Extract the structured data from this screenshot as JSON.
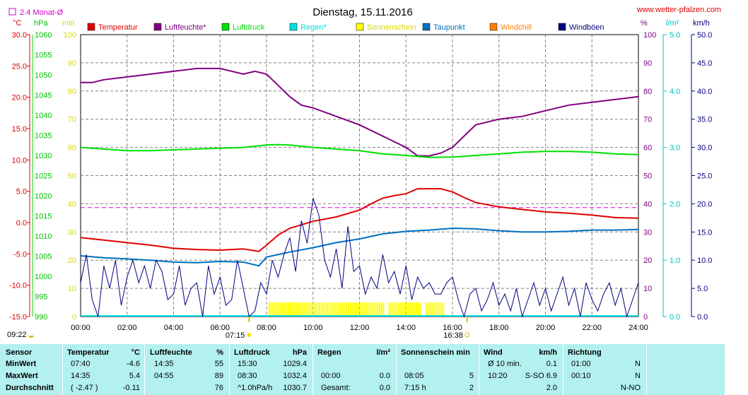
{
  "header": {
    "title": "Dienstag, 15.11.2016",
    "website": "www.wetter-pfalzen.com",
    "monthly_avg_label": "2.4 Monat-Ø"
  },
  "legend": [
    {
      "name": "Temperatur",
      "color": "#e00000"
    },
    {
      "name": "Luftfeuchte*",
      "color": "#800080"
    },
    {
      "name": "Luftdruck",
      "color": "#00e000"
    },
    {
      "name": "Regen*",
      "color": "#00e0e0"
    },
    {
      "name": "Sonnenschein",
      "color": "#ffff00"
    },
    {
      "name": "Taupunkt",
      "color": "#0070c0"
    },
    {
      "name": "Windchill",
      "color": "#ff8000"
    },
    {
      "name": "Windböen",
      "color": "#000080"
    }
  ],
  "chart_data": {
    "type": "line",
    "title": "Dienstag, 15.11.2016",
    "x_ticks": [
      "00:00",
      "02:00",
      "04:00",
      "06:00",
      "08:00",
      "10:00",
      "12:00",
      "14:00",
      "16:00",
      "18:00",
      "20:00",
      "22:00",
      "24:00"
    ],
    "xlim_hours": [
      0,
      24
    ],
    "grid": true,
    "axes": {
      "temperature": {
        "unit": "°C",
        "range": [
          -15,
          30
        ],
        "ticks": [
          "30.0",
          "25.0",
          "20.0",
          "15.0",
          "10.0",
          "5.0",
          "0.0",
          "-5.0",
          "-10.0",
          "-15.0"
        ]
      },
      "pressure": {
        "unit": "hPa",
        "range": [
          990,
          1060
        ],
        "ticks": [
          "1060",
          "1055",
          "1050",
          "1045",
          "1040",
          "1035",
          "1030",
          "1025",
          "1020",
          "1015",
          "1010",
          "1005",
          "1000",
          "995",
          "990"
        ]
      },
      "sunshine": {
        "unit": "min",
        "range": [
          0,
          100
        ],
        "ticks": [
          "100",
          "90",
          "80",
          "70",
          "60",
          "50",
          "40",
          "30",
          "20",
          "10",
          "0"
        ]
      },
      "humidity": {
        "unit": "%",
        "range": [
          0,
          100
        ],
        "ticks": [
          "100",
          "90",
          "80",
          "70",
          "60",
          "50",
          "40",
          "30",
          "20",
          "10",
          "0"
        ]
      },
      "rain": {
        "unit": "l/m²",
        "range": [
          0,
          5
        ],
        "ticks": [
          "5.0",
          "4.0",
          "3.0",
          "2.0",
          "1.0",
          "0.0"
        ]
      },
      "wind": {
        "unit": "km/h",
        "range": [
          0,
          50
        ],
        "ticks": [
          "50.0",
          "45.0",
          "40.0",
          "35.0",
          "30.0",
          "25.0",
          "20.0",
          "15.0",
          "10.0",
          "5.0",
          "0.0"
        ]
      }
    },
    "monthly_avg_temperature": 2.4,
    "series": [
      {
        "name": "Temperatur",
        "axis": "temperature",
        "color": "#e00000",
        "x": [
          0,
          1,
          2,
          3,
          4,
          5,
          6,
          7,
          7.67,
          8,
          8.5,
          9,
          10,
          11,
          12,
          12.5,
          13,
          13.5,
          14,
          14.5,
          15,
          15.5,
          16,
          16.5,
          17,
          18,
          19,
          20,
          21,
          22,
          23,
          24
        ],
        "y": [
          -2.4,
          -2.8,
          -3.2,
          -3.6,
          -4.1,
          -4.3,
          -4.4,
          -4.2,
          -4.6,
          -3.6,
          -2.0,
          -0.9,
          0.2,
          0.9,
          2.0,
          3.0,
          3.9,
          4.3,
          4.6,
          5.4,
          5.4,
          5.4,
          4.9,
          4.0,
          3.2,
          2.5,
          2.1,
          1.7,
          1.5,
          1.2,
          0.8,
          0.7
        ]
      },
      {
        "name": "Luftfeuchte",
        "axis": "humidity",
        "color": "#800080",
        "x": [
          0,
          0.5,
          1,
          2,
          3,
          4,
          5,
          6,
          7,
          7.5,
          8,
          8.5,
          9,
          9.5,
          10,
          11,
          12,
          12.5,
          13,
          13.5,
          14,
          14.5,
          15,
          15.5,
          16,
          16.5,
          17,
          18,
          19,
          20,
          21,
          22,
          23,
          24
        ],
        "y": [
          83,
          83,
          84,
          85,
          86,
          87,
          88,
          88,
          86,
          87,
          86,
          82,
          78,
          75,
          74,
          71,
          68,
          66,
          64,
          62,
          60,
          57,
          57,
          58,
          60,
          64,
          68,
          70,
          71,
          73,
          75,
          76,
          77,
          78
        ]
      },
      {
        "name": "Luftdruck",
        "axis": "pressure",
        "color": "#00e000",
        "x": [
          0,
          1,
          2,
          3,
          4,
          5,
          6,
          7,
          8,
          8.5,
          9,
          10,
          11,
          12,
          13,
          14,
          15,
          16,
          17,
          18,
          19,
          20,
          21,
          22,
          23,
          24
        ],
        "y": [
          1032.0,
          1031.6,
          1031.2,
          1031.2,
          1031.4,
          1031.6,
          1031.8,
          1032.0,
          1032.6,
          1032.7,
          1032.6,
          1032.0,
          1031.6,
          1031.2,
          1030.4,
          1030.0,
          1029.5,
          1029.6,
          1030.0,
          1030.4,
          1030.8,
          1031.0,
          1031.0,
          1030.8,
          1030.4,
          1030.2
        ]
      },
      {
        "name": "Taupunkt",
        "axis": "temperature",
        "color": "#0070c0",
        "x": [
          0,
          1,
          2,
          3,
          4,
          5,
          6,
          7,
          7.67,
          8,
          9,
          10,
          11,
          12,
          13,
          14,
          15,
          16,
          17,
          18,
          19,
          20,
          21,
          22,
          23,
          24
        ],
        "y": [
          -5.3,
          -5.6,
          -5.8,
          -6.0,
          -6.3,
          -6.4,
          -6.2,
          -6.3,
          -6.9,
          -5.5,
          -4.7,
          -4.0,
          -3.2,
          -2.6,
          -1.8,
          -1.4,
          -1.2,
          -0.9,
          -1.0,
          -1.3,
          -1.5,
          -1.5,
          -1.4,
          -1.2,
          -1.2,
          -1.1
        ]
      },
      {
        "name": "Windböen",
        "axis": "wind",
        "color": "#000080",
        "x": [
          0,
          0.25,
          0.5,
          0.75,
          1,
          1.25,
          1.5,
          1.75,
          2,
          2.25,
          2.5,
          2.75,
          3,
          3.25,
          3.5,
          3.75,
          4,
          4.25,
          4.5,
          4.75,
          5,
          5.25,
          5.5,
          5.75,
          6,
          6.25,
          6.5,
          6.75,
          7,
          7.25,
          7.5,
          7.75,
          8,
          8.25,
          8.5,
          8.75,
          9,
          9.25,
          9.5,
          9.75,
          10,
          10.25,
          10.5,
          10.75,
          11,
          11.25,
          11.5,
          11.75,
          12,
          12.25,
          12.5,
          12.75,
          13,
          13.25,
          13.5,
          13.75,
          14,
          14.25,
          14.5,
          14.75,
          15,
          15.25,
          15.5,
          15.75,
          16,
          16.25,
          16.5,
          16.75,
          17,
          17.25,
          17.5,
          17.75,
          18,
          18.25,
          18.5,
          18.75,
          19,
          19.25,
          19.5,
          19.75,
          20,
          20.25,
          20.5,
          20.75,
          21,
          21.25,
          21.5,
          21.75,
          22,
          22.25,
          22.5,
          22.75,
          23,
          23.25,
          23.5,
          23.75,
          24
        ],
        "y": [
          6,
          11,
          3,
          0,
          9,
          5,
          10,
          2,
          7,
          10,
          6,
          9,
          5,
          10,
          8,
          3,
          4,
          9,
          2,
          5,
          6,
          0,
          9,
          4,
          7,
          2,
          3,
          10,
          5,
          0,
          1,
          6,
          4,
          10,
          7,
          11,
          14,
          8,
          17,
          13,
          21,
          18,
          10,
          7,
          12,
          5,
          16,
          8,
          9,
          4,
          7,
          5,
          11,
          6,
          8,
          4,
          9,
          3,
          7,
          5,
          6,
          4,
          4,
          6,
          7,
          3,
          0,
          4,
          5,
          1,
          3,
          6,
          2,
          4,
          1,
          5,
          0,
          3,
          6,
          2,
          5,
          1,
          4,
          7,
          2,
          5,
          0,
          6,
          3,
          1,
          4,
          6,
          2,
          5,
          0,
          3,
          6
        ]
      }
    ],
    "sunshine_bars": {
      "from": "08:05",
      "to": "15:40",
      "gaps": [
        [
          "13:05",
          "13:15"
        ],
        [
          "14:40",
          "14:50"
        ]
      ]
    },
    "markers": {
      "sunrise": "07:15",
      "sunset": "16:38",
      "moon_set": "09:22"
    }
  },
  "stats": {
    "headers": {
      "sensor": "Sensor",
      "temp": "Temperatur",
      "temp_unit": "°C",
      "hum": "Luftfeuchte",
      "hum_unit": "%",
      "press": "Luftdruck",
      "press_unit": "hPa",
      "rain": "Regen",
      "rain_unit": "l/m²",
      "sun": "Sonnenschein min",
      "wind": "Wind",
      "wind_unit": "km/h",
      "dir": "Richtung"
    },
    "rows": [
      {
        "label": "MinWert",
        "temp_time": "07:40",
        "temp_val": "-4.6",
        "hum_time": "14:35",
        "hum_val": "55",
        "press_time": "15:30",
        "press_val": "1029.4",
        "rain_time": "",
        "rain_val": "",
        "sun_time": "",
        "sun_val": "",
        "wind_time": "Ø 10 min.",
        "wind_val": "0.1",
        "dir_time": "01:00",
        "dir_val": "N"
      },
      {
        "label": "MaxWert",
        "temp_time": "14:35",
        "temp_val": "5.4",
        "hum_time": "04:55",
        "hum_val": "89",
        "press_time": "08:30",
        "press_val": "1032.4",
        "rain_time": "00:00",
        "rain_val": "0.0",
        "sun_time": "08:05",
        "sun_val": "5",
        "wind_time": "10:20",
        "wind_val": "S-SO 6.9",
        "dir_time": "00:10",
        "dir_val": "N"
      },
      {
        "label": "Durchschnitt",
        "temp_time": "( -2.47 )",
        "temp_val": "-0.11",
        "hum_time": "",
        "hum_val": "76",
        "press_time": "^1.0hPa/h",
        "press_val": "1030.7",
        "rain_time": "Gesamt:",
        "rain_val": "0.0",
        "sun_time": "7:15 h",
        "sun_val": "2",
        "wind_time": "",
        "wind_val": "2.0",
        "dir_time": "",
        "dir_val": "N-NO"
      }
    ]
  }
}
